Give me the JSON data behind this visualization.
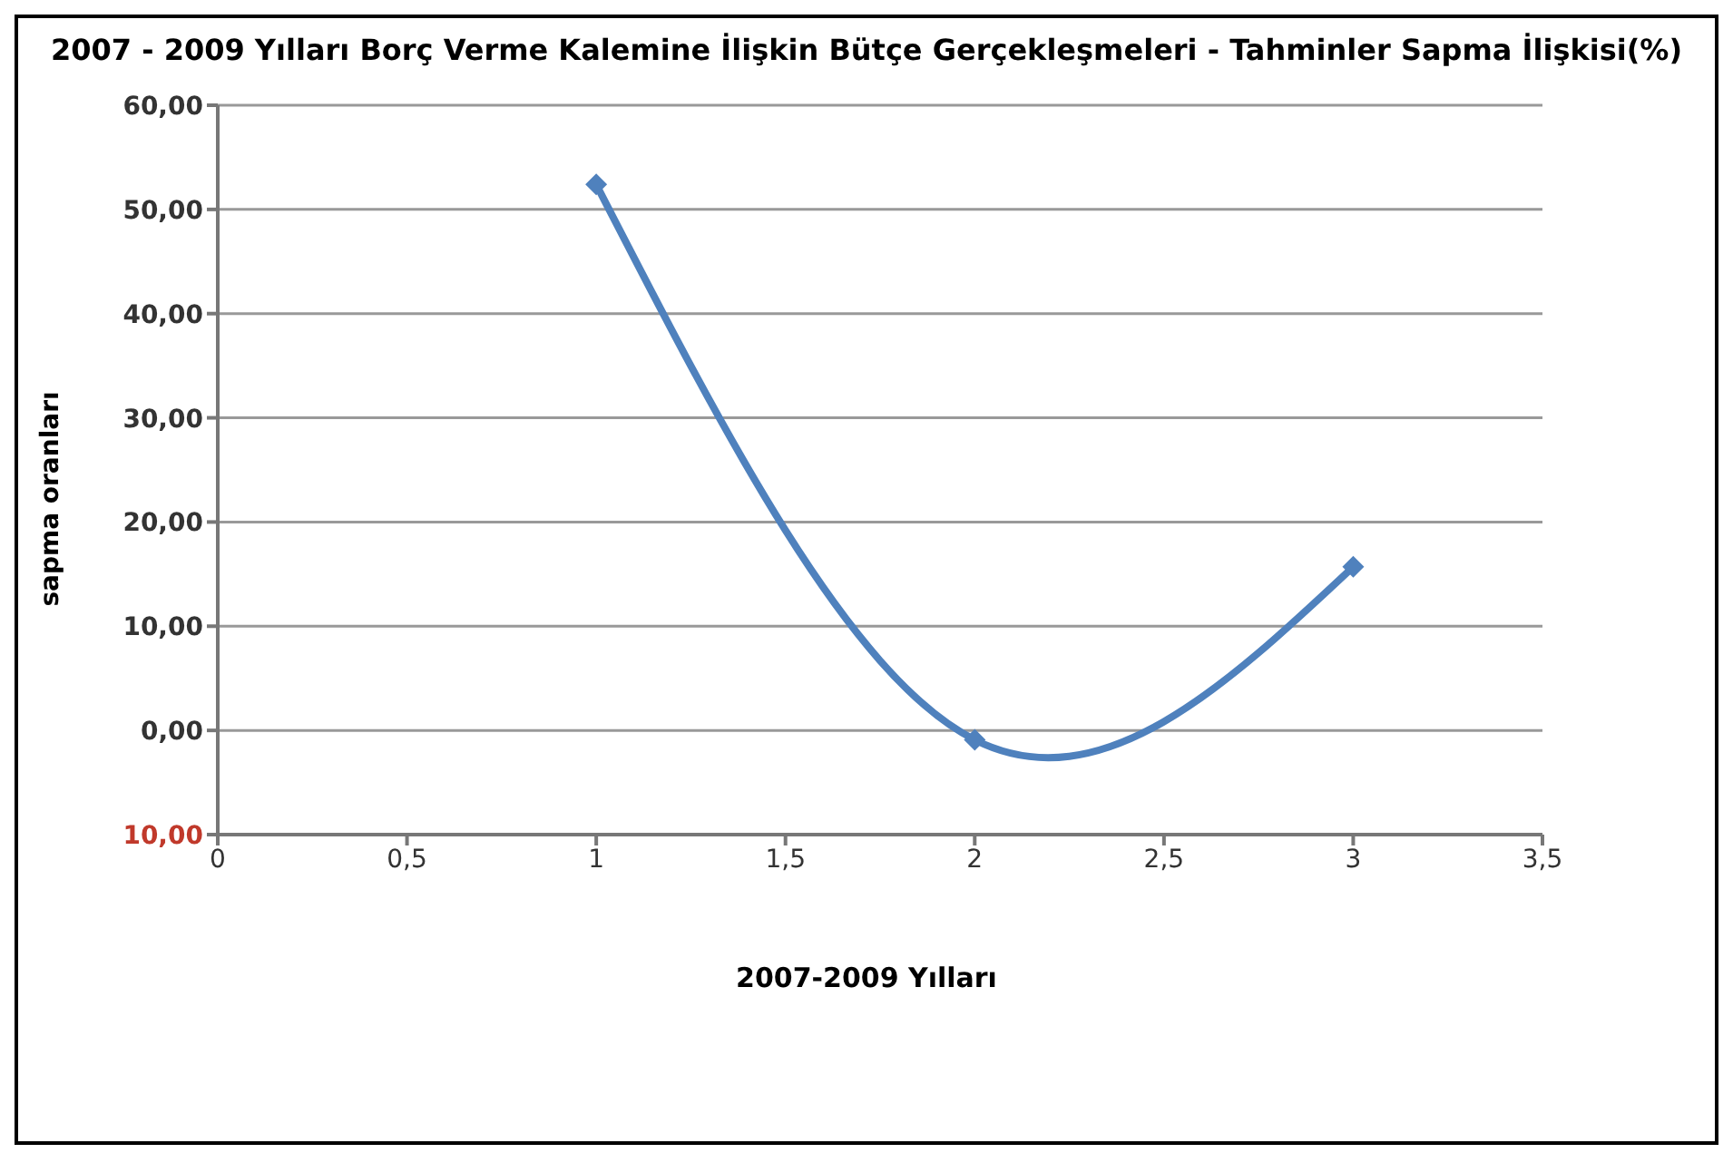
{
  "chart_data": {
    "type": "line",
    "title": "2007 - 2009 Yılları Borç Verme Kalemine İlişkin Bütçe Gerçekleşmeleri - Tahminler Sapma İlişkisi(%)",
    "xlabel": "2007-2009 Yılları",
    "ylabel": "sapma oranları",
    "x": [
      1,
      2,
      3
    ],
    "series": [
      {
        "color": "#4f81bd",
        "values": [
          52.4,
          -0.9,
          15.7
        ]
      }
    ],
    "xlim": [
      0,
      3.5
    ],
    "xticks": [
      {
        "value": 0,
        "label": "0"
      },
      {
        "value": 0.5,
        "label": "0,5"
      },
      {
        "value": 1,
        "label": "1"
      },
      {
        "value": 1.5,
        "label": "1,5"
      },
      {
        "value": 2,
        "label": "2"
      },
      {
        "value": 2.5,
        "label": "2,5"
      },
      {
        "value": 3,
        "label": "3"
      },
      {
        "value": 3.5,
        "label": "3,5"
      }
    ],
    "ylim": [
      -10,
      60
    ],
    "yticks": [
      {
        "value": -10,
        "label": "10,00"
      },
      {
        "value": 0,
        "label": "0,00"
      },
      {
        "value": 10,
        "label": "10,00"
      },
      {
        "value": 20,
        "label": "20,00"
      },
      {
        "value": 30,
        "label": "30,00"
      },
      {
        "value": 40,
        "label": "40,00"
      },
      {
        "value": 50,
        "label": "50,00"
      },
      {
        "value": 60,
        "label": "60,00"
      }
    ],
    "grid": "y",
    "marker": "diamond",
    "line_style": "solid"
  }
}
